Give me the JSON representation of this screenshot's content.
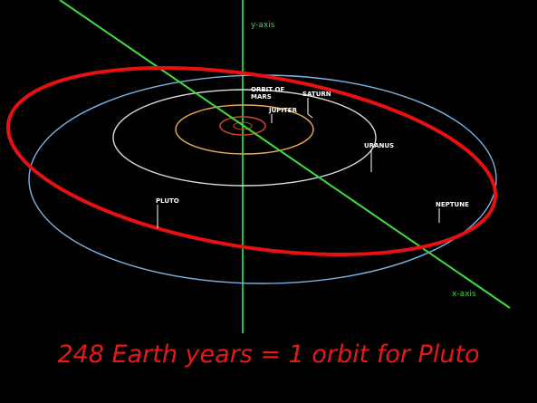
{
  "axes": {
    "y_label": "y-axis",
    "x_label": "x-axis",
    "y_color": "#18c43a",
    "x_color": "#3fdc3f",
    "label_color": "#3ad33a"
  },
  "orbits": {
    "pluto_highlight_color": "#e81010",
    "mars_color": "#d04a28",
    "jupiter_color": "#e8a85a",
    "saturn_color": "#dcdcdc",
    "outer_color": "#7ab4e4"
  },
  "labels": {
    "orbit_of_mars_line1": "ORBIT OF",
    "orbit_of_mars_line2": "MARS",
    "jupiter": "JUPITER",
    "saturn": "SATURN",
    "uranus": "URANUS",
    "neptune": "NEPTUNE",
    "pluto": "PLUTO",
    "label_color": "#ffffff"
  },
  "caption": {
    "text": "248 Earth years = 1 orbit for Pluto",
    "color": "#e81818"
  }
}
